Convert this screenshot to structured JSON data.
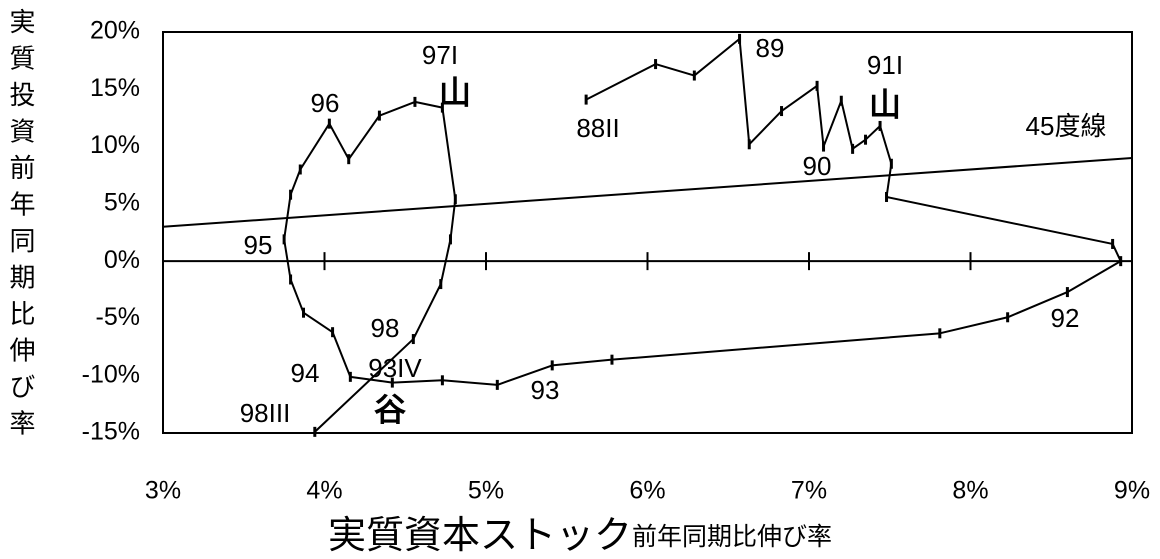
{
  "chart_data": {
    "type": "line",
    "ylabel": "実質投資前年同期比伸び率",
    "xlabel": "実質資本ストック",
    "xlabel_sub": "前年同期比伸び率",
    "xlim": [
      3,
      9
    ],
    "xticks": [
      {
        "value": 3,
        "label": "3%"
      },
      {
        "value": 4,
        "label": "4%"
      },
      {
        "value": 5,
        "label": "5%"
      },
      {
        "value": 6,
        "label": "6%"
      },
      {
        "value": 7,
        "label": "7%"
      },
      {
        "value": 8,
        "label": "8%"
      },
      {
        "value": 9,
        "label": "9%"
      }
    ],
    "ylim": [
      -15,
      20
    ],
    "yticks": [
      {
        "value": 20,
        "label": "20%"
      },
      {
        "value": 15,
        "label": "15%"
      },
      {
        "value": 10,
        "label": "10%"
      },
      {
        "value": 5,
        "label": "5%"
      },
      {
        "value": 0,
        "label": "0%"
      },
      {
        "value": -5,
        "label": "-5%"
      },
      {
        "value": -10,
        "label": "-10%"
      },
      {
        "value": -15,
        "label": "-15%"
      }
    ],
    "series": [
      {
        "color": "#000000",
        "x": [
          5.62,
          6.05,
          6.29,
          6.57,
          6.63,
          6.83,
          7.05,
          7.09,
          7.2,
          7.27,
          7.35,
          7.44,
          7.51,
          7.48,
          8.88,
          8.93,
          8.6,
          8.23,
          7.81,
          5.78,
          5.41,
          5.07,
          4.73,
          4.42,
          4.16,
          4.05,
          3.87,
          3.79,
          3.75,
          3.79,
          3.85,
          4.03,
          4.15,
          4.34,
          4.56,
          4.73,
          4.81,
          4.78,
          4.72,
          4.55,
          3.94
        ],
        "values": [
          14.1,
          17.2,
          16.2,
          19.4,
          10.2,
          13.1,
          15.3,
          10.0,
          14.0,
          9.8,
          10.6,
          11.8,
          8.5,
          5.6,
          1.5,
          0,
          -2.7,
          -4.9,
          -6.3,
          -8.6,
          -9.1,
          -10.8,
          -10.4,
          -10.6,
          -10.1,
          -6.2,
          -4.5,
          -1.6,
          1.9,
          5.8,
          8.0,
          12.0,
          8.9,
          12.7,
          13.9,
          13.4,
          5.4,
          1.9,
          -2.0,
          -6.8,
          -14.9
        ]
      }
    ],
    "reference_line": {
      "label": "45度線",
      "x": [
        3,
        9
      ],
      "values": [
        3,
        9
      ]
    },
    "annotations": [
      "88II",
      "89",
      "90",
      "91I",
      "山",
      "92",
      "93",
      "93IV",
      "谷",
      "94",
      "95",
      "96",
      "97I",
      "山",
      "98",
      "98III"
    ]
  }
}
